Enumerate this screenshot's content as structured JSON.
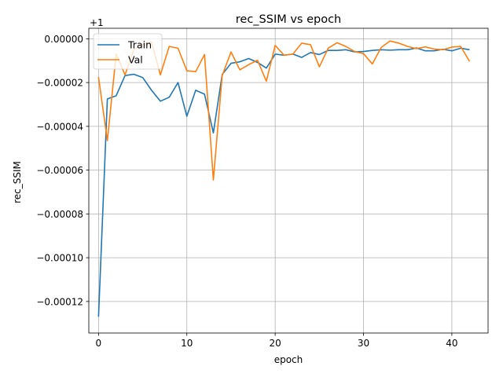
{
  "chart_data": {
    "type": "line",
    "title": "rec_SSIM vs epoch",
    "xlabel": "epoch",
    "ylabel": "rec_SSIM",
    "offset_label": "+1",
    "xlim": [
      -1.1,
      44.1
    ],
    "ylim": [
      -0.0001344,
      4.8e-06
    ],
    "xticks": [
      0,
      10,
      20,
      30,
      40
    ],
    "xtick_labels": [
      "0",
      "10",
      "20",
      "30",
      "40"
    ],
    "yticks": [
      0.0,
      -2e-05,
      -4e-05,
      -6e-05,
      -8e-05,
      -0.0001,
      -0.00012
    ],
    "ytick_labels": [
      "0.00000",
      "−0.00002",
      "−0.00004",
      "−0.00006",
      "−0.00008",
      "−0.00010",
      "−0.00012"
    ],
    "grid": true,
    "legend_position": "top-left",
    "x": [
      0,
      1,
      2,
      3,
      4,
      5,
      6,
      7,
      8,
      9,
      10,
      11,
      12,
      13,
      14,
      15,
      16,
      17,
      18,
      19,
      20,
      21,
      22,
      23,
      24,
      25,
      26,
      27,
      28,
      29,
      30,
      31,
      32,
      33,
      34,
      35,
      36,
      37,
      38,
      39,
      40,
      41,
      42
    ],
    "series": [
      {
        "name": "Train",
        "color": "#1f77b4",
        "values": [
          -0.000127,
          -2.75e-05,
          -2.6e-05,
          -1.68e-05,
          -1.62e-05,
          -1.77e-05,
          -2.35e-05,
          -2.85e-05,
          -2.67e-05,
          -2e-05,
          -3.54e-05,
          -2.35e-05,
          -2.53e-05,
          -4.3e-05,
          -1.63e-05,
          -1.12e-05,
          -1.05e-05,
          -9e-06,
          -1.08e-05,
          -1.34e-05,
          -7e-06,
          -7.5e-06,
          -7e-06,
          -8.5e-06,
          -6.3e-06,
          -7.2e-06,
          -5.3e-06,
          -5.3e-06,
          -5e-06,
          -6e-06,
          -5.8e-06,
          -5.3e-06,
          -5e-06,
          -5.2e-06,
          -5e-06,
          -5e-06,
          -4.2e-06,
          -5.5e-06,
          -5.5e-06,
          -4.8e-06,
          -5.5e-06,
          -4.3e-06,
          -5e-06
        ]
      },
      {
        "name": "Val",
        "color": "#ff7f0e",
        "values": [
          -1.75e-05,
          -4.65e-05,
          -7e-06,
          -1.65e-05,
          -4.8e-06,
          -2.5e-06,
          -1.5e-06,
          -1.65e-05,
          -3.5e-06,
          -4.3e-06,
          -1.46e-05,
          -1.5e-05,
          -7.2e-06,
          -6.45e-05,
          -1.68e-05,
          -6e-06,
          -1.42e-05,
          -1.18e-05,
          -9.8e-06,
          -1.94e-05,
          -3e-06,
          -7.5e-06,
          -7e-06,
          -2e-06,
          -2.7e-06,
          -1.28e-05,
          -4.3e-06,
          -1.8e-06,
          -3.5e-06,
          -5.8e-06,
          -6.8e-06,
          -1.15e-05,
          -4e-06,
          -1e-06,
          -2e-06,
          -3.5e-06,
          -4.5e-06,
          -3.7e-06,
          -4.7e-06,
          -5e-06,
          -3.8e-06,
          -3.5e-06,
          -1.03e-05
        ]
      }
    ]
  }
}
